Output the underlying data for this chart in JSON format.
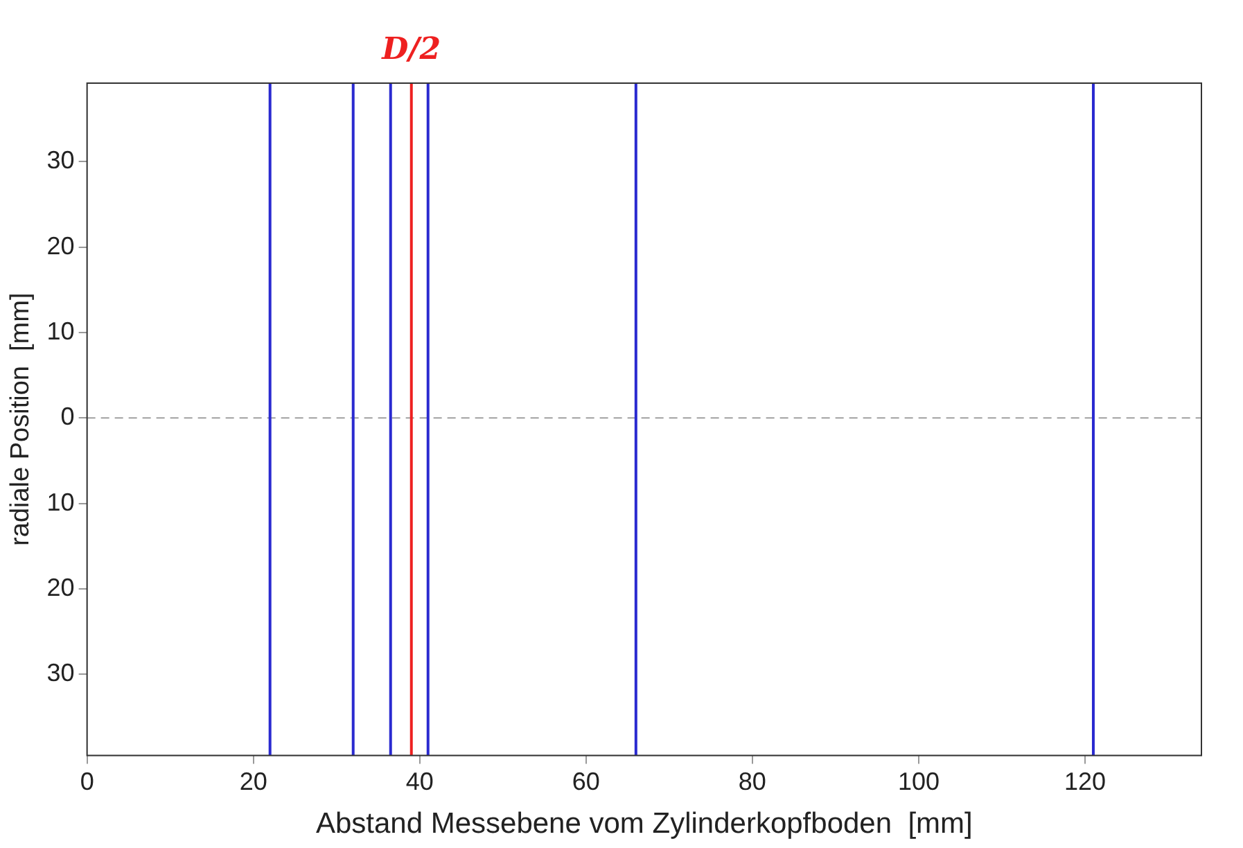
{
  "chart_data": {
    "type": "line",
    "xlabel": "Abstand Messebene vom Zylinderkopfboden  [mm]",
    "ylabel": "radiale Position  [mm]",
    "xlim": [
      0,
      134
    ],
    "xticks": [
      0,
      20,
      40,
      60,
      80,
      100,
      120
    ],
    "ylim": [
      -39.5,
      39.2
    ],
    "yticks": [
      {
        "value": -30,
        "label": "30"
      },
      {
        "value": -20,
        "label": "20"
      },
      {
        "value": -10,
        "label": "10"
      },
      0,
      10,
      20,
      30
    ],
    "grid": false,
    "legend": false,
    "ref_lines": [
      {
        "axis": "y",
        "value": 0,
        "color": "#a0a0a0",
        "line_style": "dashed"
      },
      {
        "axis": "x",
        "value": 22,
        "color": "#2a2ad0"
      },
      {
        "axis": "x",
        "value": 32,
        "color": "#2a2ad0"
      },
      {
        "axis": "x",
        "value": 36.5,
        "color": "#2a2ad0"
      },
      {
        "axis": "x",
        "value": 41,
        "color": "#2a2ad0"
      },
      {
        "axis": "x",
        "value": 66,
        "color": "#2a2ad0"
      },
      {
        "axis": "x",
        "value": 121,
        "color": "#2a2ad0"
      },
      {
        "axis": "x",
        "value": 39,
        "color": "#ee2020",
        "label": "D/2"
      }
    ]
  }
}
